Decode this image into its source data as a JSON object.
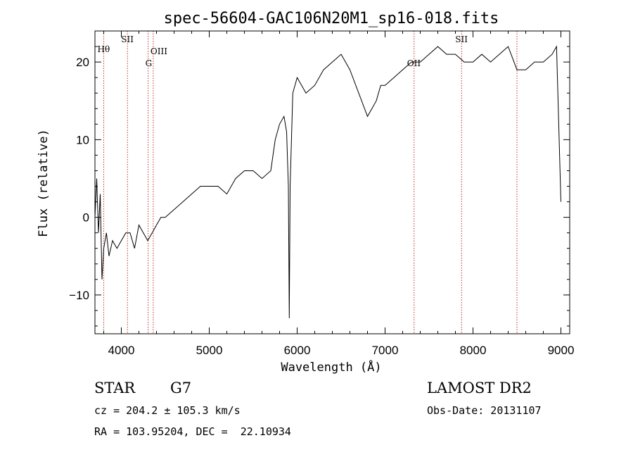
{
  "chart_data": {
    "type": "line",
    "title": "spec-56604-GAC106N20M1_sp16-018.fits",
    "xlabel": "Wavelength (Å)",
    "ylabel": "Flux (relative)",
    "xlim": [
      3700,
      9100
    ],
    "ylim": [
      -15,
      24
    ],
    "xticks": [
      4000,
      5000,
      6000,
      7000,
      8000,
      9000
    ],
    "yticks": [
      -10,
      0,
      10,
      20
    ],
    "series": [
      {
        "x": [
          3700,
          3720,
          3740,
          3760,
          3780,
          3800,
          3830,
          3860,
          3900,
          3950,
          4000,
          4050,
          4100,
          4150,
          4200,
          4250,
          4300,
          4350,
          4400,
          4450,
          4500,
          4600,
          4700,
          4800,
          4900,
          5000,
          5100,
          5200,
          5300,
          5400,
          5500,
          5600,
          5700,
          5750,
          5800,
          5850,
          5880,
          5900,
          5910,
          5920,
          5950,
          6000,
          6050,
          6100,
          6200,
          6300,
          6400,
          6500,
          6550,
          6600,
          6700,
          6800,
          6850,
          6900,
          6950,
          7000,
          7100,
          7200,
          7300,
          7400,
          7500,
          7600,
          7700,
          7800,
          7900,
          8000,
          8100,
          8200,
          8300,
          8400,
          8500,
          8600,
          8700,
          8800,
          8900,
          8950,
          9000
        ],
        "y": [
          0,
          5,
          -2,
          3,
          -8,
          -4,
          -2,
          -5,
          -3,
          -4,
          -3,
          -2,
          -2,
          -4,
          -1,
          -2,
          -3,
          -2,
          -1,
          0,
          0,
          1,
          2,
          3,
          4,
          4,
          4,
          3,
          5,
          6,
          6,
          5,
          6,
          10,
          12,
          13,
          11,
          4,
          -13,
          4,
          16,
          18,
          17,
          16,
          17,
          19,
          20,
          21,
          20,
          19,
          16,
          13,
          14,
          15,
          17,
          17,
          18,
          19,
          20,
          20,
          21,
          22,
          21,
          21,
          20,
          20,
          21,
          20,
          21,
          22,
          19,
          19,
          20,
          20,
          21,
          22,
          2
        ]
      }
    ],
    "line_markers": [
      {
        "label": "Hθ",
        "wavelength": 3800
      },
      {
        "label": "SII",
        "wavelength": 4070
      },
      {
        "label": "G",
        "wavelength": 4305
      },
      {
        "label": "OIII",
        "wavelength": 4363
      },
      {
        "label": "OII",
        "wavelength": 7330
      },
      {
        "label": "SII",
        "wavelength": 7870
      },
      {
        "label": "",
        "wavelength": 8500
      }
    ],
    "grid": false
  },
  "info": {
    "object_type": "STAR",
    "subclass": "G7",
    "survey": "LAMOST DR2",
    "cz": "cz = 204.2 ± 105.3 km/s",
    "obs_date": "Obs-Date: 20131107",
    "coords": "RA = 103.95204, DEC =  22.10934"
  },
  "colors": {
    "line_marker": "#c03030",
    "spectrum": "#000000"
  }
}
